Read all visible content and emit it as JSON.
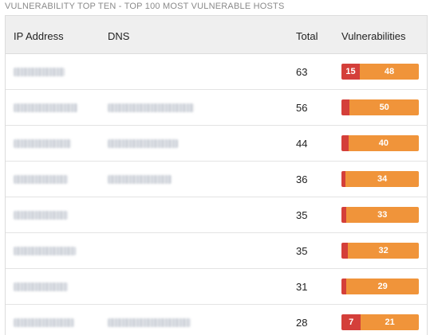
{
  "title": "VULNERABILITY TOP TEN - TOP 100 MOST VULNERABLE HOSTS",
  "columns": {
    "ip": "IP Address",
    "dns": "DNS",
    "total": "Total",
    "vulns": "Vulnerabilities"
  },
  "colors": {
    "critical": "#d43f3a",
    "high": "#f0943a"
  },
  "rows": [
    {
      "total": "63",
      "critical": 15,
      "critical_label": "15",
      "high": 48,
      "high_label": "48"
    },
    {
      "total": "56",
      "critical": 6,
      "critical_label": "",
      "high": 50,
      "high_label": "50"
    },
    {
      "total": "44",
      "critical": 4,
      "critical_label": "",
      "high": 40,
      "high_label": "40"
    },
    {
      "total": "36",
      "critical": 2,
      "critical_label": "",
      "high": 34,
      "high_label": "34"
    },
    {
      "total": "35",
      "critical": 2,
      "critical_label": "",
      "high": 33,
      "high_label": "33"
    },
    {
      "total": "35",
      "critical": 3,
      "critical_label": "",
      "high": 32,
      "high_label": "32"
    },
    {
      "total": "31",
      "critical": 2,
      "critical_label": "",
      "high": 29,
      "high_label": "29"
    },
    {
      "total": "28",
      "critical": 7,
      "critical_label": "7",
      "high": 21,
      "high_label": "21"
    }
  ]
}
